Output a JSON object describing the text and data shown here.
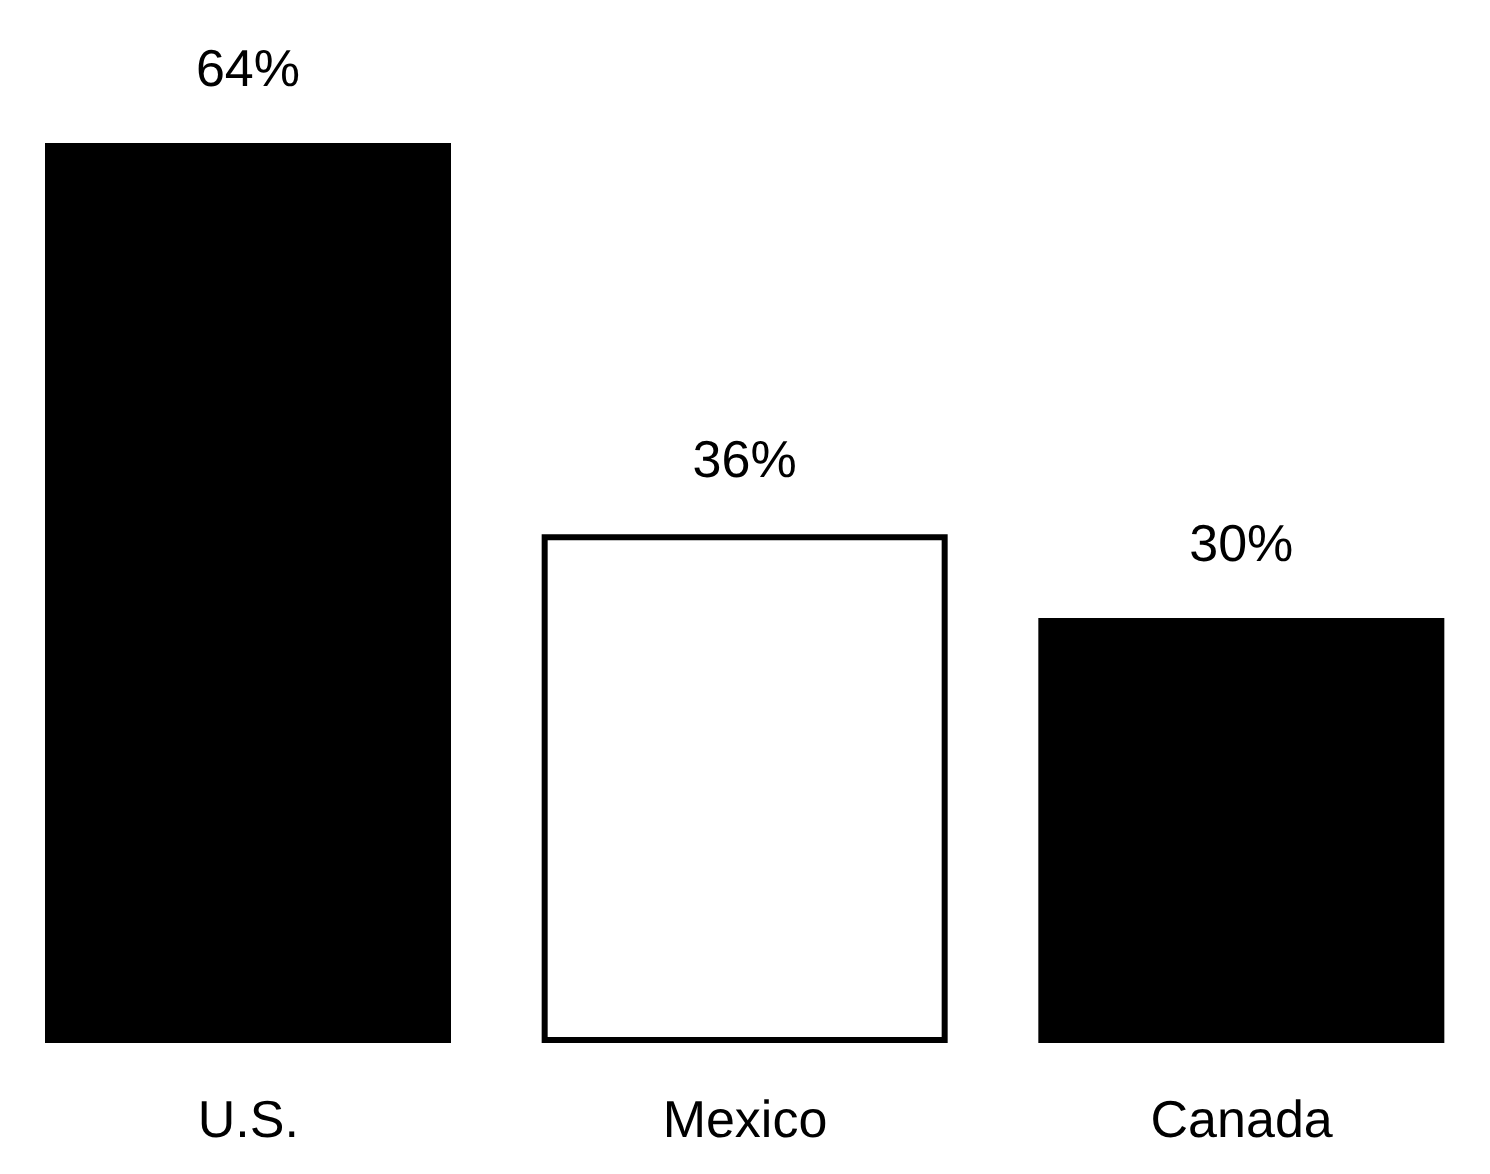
{
  "chart_data": {
    "type": "bar",
    "categories": [
      "U.S.",
      "Mexico",
      "Canada"
    ],
    "values": [
      64,
      36,
      30
    ],
    "colors": [
      "#000000",
      "#ffffff",
      "#000000"
    ],
    "value_labels": [
      "64%",
      "36%",
      "30%"
    ]
  }
}
